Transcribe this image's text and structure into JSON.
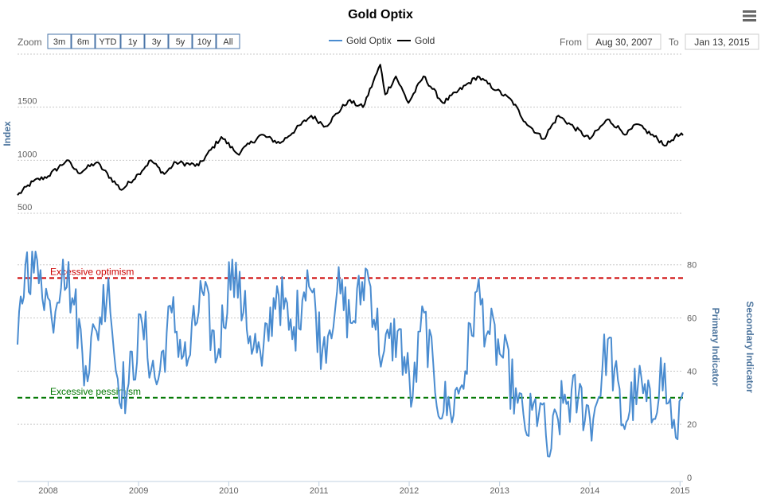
{
  "chart_data": {
    "type": "line",
    "title": "Gold Optix",
    "legend": {
      "placement": "top-center",
      "items": [
        {
          "name": "Gold Optix",
          "color": "#4a8cd0"
        },
        {
          "name": "Gold",
          "color": "#000000"
        }
      ]
    },
    "toolbar": {
      "zoom_label": "Zoom",
      "range_buttons": [
        "3m",
        "6m",
        "YTD",
        "1y",
        "3y",
        "5y",
        "10y",
        "All"
      ],
      "from_label": "From",
      "from_value": "Aug 30, 2007",
      "to_label": "To",
      "to_value": "Jan 13, 2015",
      "menu_icon": "hamburger-menu-icon"
    },
    "x_axis": {
      "range": [
        "2007-08-30",
        "2015-01-13"
      ],
      "ticks": [
        "2008",
        "2009",
        "2010",
        "2011",
        "2012",
        "2013",
        "2014",
        "2015"
      ]
    },
    "top_panel": {
      "ylabel": "Index",
      "ylim": [
        500,
        2000
      ],
      "yticks": [
        "500",
        "1000",
        "1500"
      ],
      "grid": true
    },
    "bottom_panel": {
      "ylabel_primary": "Primary Indicator",
      "ylabel_secondary": "Secondary Indicator",
      "ylim": [
        0,
        85
      ],
      "yticks": [
        "0",
        "20",
        "40",
        "60",
        "80"
      ],
      "grid": true,
      "threshold_lines": [
        {
          "label": "Excessive optimism",
          "value": 75,
          "color": "#cc0000"
        },
        {
          "label": "Excessive pessimism",
          "value": 30,
          "color": "#007700"
        }
      ]
    },
    "series": [
      {
        "name": "Gold",
        "panel": "top",
        "color": "#000000",
        "points": [
          [
            "2007-08-30",
            670
          ],
          [
            "2007-11-01",
            800
          ],
          [
            "2008-01-01",
            850
          ],
          [
            "2008-03-17",
            1000
          ],
          [
            "2008-05-01",
            880
          ],
          [
            "2008-07-15",
            980
          ],
          [
            "2008-10-24",
            720
          ],
          [
            "2008-12-31",
            870
          ],
          [
            "2009-02-20",
            1000
          ],
          [
            "2009-04-15",
            870
          ],
          [
            "2009-06-01",
            980
          ],
          [
            "2009-09-01",
            950
          ],
          [
            "2009-12-02",
            1220
          ],
          [
            "2010-02-05",
            1060
          ],
          [
            "2010-05-12",
            1240
          ],
          [
            "2010-07-27",
            1160
          ],
          [
            "2010-12-01",
            1420
          ],
          [
            "2011-01-28",
            1320
          ],
          [
            "2011-04-29",
            1560
          ],
          [
            "2011-06-28",
            1500
          ],
          [
            "2011-09-06",
            1900
          ],
          [
            "2011-09-26",
            1620
          ],
          [
            "2011-11-08",
            1790
          ],
          [
            "2011-12-29",
            1540
          ],
          [
            "2012-02-28",
            1790
          ],
          [
            "2012-05-16",
            1540
          ],
          [
            "2012-10-04",
            1790
          ],
          [
            "2012-12-20",
            1660
          ],
          [
            "2013-02-20",
            1560
          ],
          [
            "2013-04-15",
            1360
          ],
          [
            "2013-06-27",
            1200
          ],
          [
            "2013-08-27",
            1420
          ],
          [
            "2013-12-31",
            1200
          ],
          [
            "2014-03-14",
            1385
          ],
          [
            "2014-05-30",
            1245
          ],
          [
            "2014-07-10",
            1340
          ],
          [
            "2014-11-07",
            1140
          ],
          [
            "2014-12-12",
            1225
          ],
          [
            "2015-01-13",
            1235
          ]
        ]
      },
      {
        "name": "Gold Optix",
        "panel": "bottom",
        "color": "#4a8cd0",
        "points": [
          [
            "2007-08-30",
            50
          ],
          [
            "2007-10-01",
            80
          ],
          [
            "2007-12-01",
            78
          ],
          [
            "2008-01-15",
            60
          ],
          [
            "2008-03-01",
            82
          ],
          [
            "2008-04-15",
            65
          ],
          [
            "2008-06-01",
            42
          ],
          [
            "2008-07-15",
            55
          ],
          [
            "2008-09-01",
            75
          ],
          [
            "2008-10-01",
            40
          ],
          [
            "2008-11-15",
            32
          ],
          [
            "2009-01-15",
            58
          ],
          [
            "2009-03-15",
            35
          ],
          [
            "2009-05-15",
            62
          ],
          [
            "2009-07-15",
            42
          ],
          [
            "2009-09-15",
            70
          ],
          [
            "2009-11-15",
            45
          ],
          [
            "2010-01-15",
            82
          ],
          [
            "2010-03-01",
            62
          ],
          [
            "2010-05-15",
            42
          ],
          [
            "2010-07-15",
            72
          ],
          [
            "2010-09-15",
            52
          ],
          [
            "2010-11-15",
            78
          ],
          [
            "2011-01-15",
            48
          ],
          [
            "2011-03-15",
            70
          ],
          [
            "2011-05-15",
            58
          ],
          [
            "2011-07-15",
            78
          ],
          [
            "2011-09-15",
            45
          ],
          [
            "2011-11-15",
            55
          ],
          [
            "2012-01-15",
            30
          ],
          [
            "2012-03-01",
            62
          ],
          [
            "2012-04-15",
            32
          ],
          [
            "2012-06-15",
            25
          ],
          [
            "2012-08-15",
            40
          ],
          [
            "2012-10-01",
            70
          ],
          [
            "2012-11-15",
            55
          ],
          [
            "2013-01-15",
            45
          ],
          [
            "2013-03-15",
            28
          ],
          [
            "2013-04-15",
            18
          ],
          [
            "2013-06-15",
            28
          ],
          [
            "2013-07-15",
            8
          ],
          [
            "2013-09-15",
            28
          ],
          [
            "2013-11-15",
            30
          ],
          [
            "2014-01-15",
            22
          ],
          [
            "2014-03-15",
            52
          ],
          [
            "2014-05-15",
            20
          ],
          [
            "2014-07-15",
            35
          ],
          [
            "2014-09-15",
            22
          ],
          [
            "2014-10-15",
            45
          ],
          [
            "2014-11-15",
            28
          ],
          [
            "2014-12-15",
            15
          ],
          [
            "2015-01-13",
            32
          ]
        ]
      }
    ]
  }
}
